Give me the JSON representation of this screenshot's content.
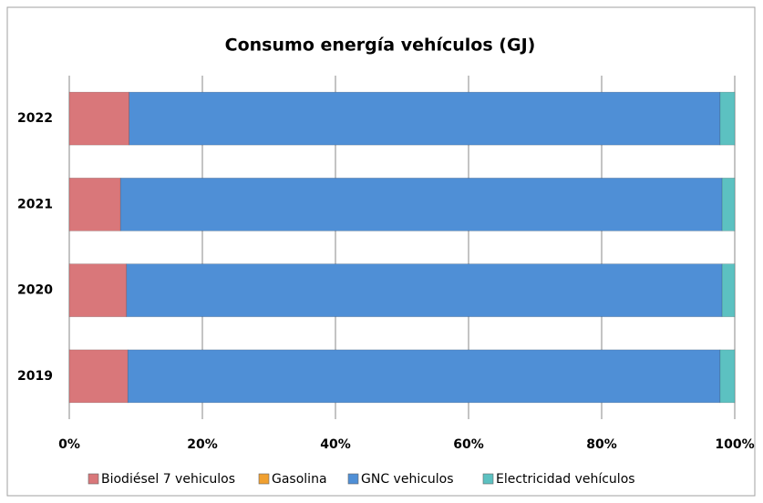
{
  "chart_data": {
    "type": "bar",
    "orientation": "horizontal",
    "stacked": true,
    "title": "Consumo energía vehículos (GJ)",
    "categories": [
      "2019",
      "2020",
      "2021",
      "2022"
    ],
    "series": [
      {
        "name": "Biodiésel 7 vehiculos",
        "color": "#d9777a",
        "values": [
          8.8,
          8.6,
          7.7,
          9.0
        ]
      },
      {
        "name": "Gasolina",
        "color": "#f0a030",
        "values": [
          0,
          0,
          0,
          0
        ]
      },
      {
        "name": "GNC vehiculos",
        "color": "#4f8fd6",
        "values": [
          89.0,
          89.5,
          90.4,
          88.8
        ]
      },
      {
        "name": "Electricidad vehículos",
        "color": "#5cc1c1",
        "values": [
          2.2,
          1.9,
          1.9,
          2.2
        ]
      }
    ],
    "xlim": [
      0,
      100
    ],
    "xticks": [
      {
        "value": 0,
        "label": "0%"
      },
      {
        "value": 20,
        "label": "20%"
      },
      {
        "value": 40,
        "label": "40%"
      },
      {
        "value": 60,
        "label": "60%"
      },
      {
        "value": 80,
        "label": "80%"
      },
      {
        "value": 100,
        "label": "100%"
      }
    ],
    "grid": true,
    "legend": "bottom"
  }
}
